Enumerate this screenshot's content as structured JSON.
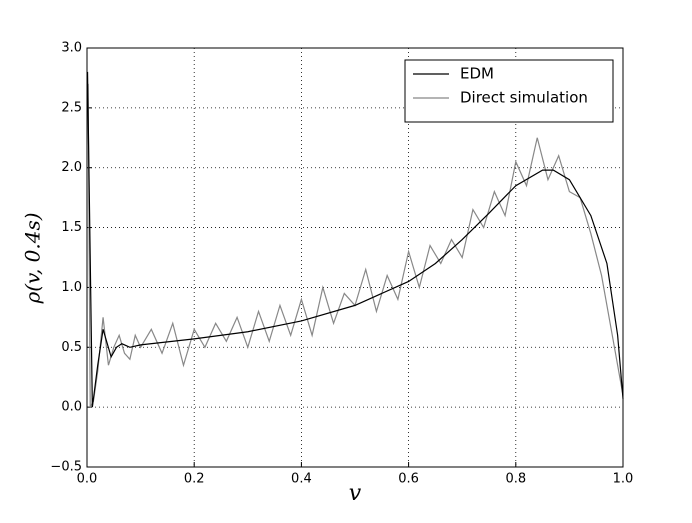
{
  "chart_data": {
    "type": "line",
    "xlabel": "v",
    "ylabel": "ρ(v, 0.4s)",
    "xlim": [
      0,
      1
    ],
    "ylim": [
      -0.5,
      3
    ],
    "xticks": [
      {
        "value": 0,
        "label": "0.0"
      },
      {
        "value": 0.2,
        "label": "0.2"
      },
      {
        "value": 0.4,
        "label": "0.4"
      },
      {
        "value": 0.6,
        "label": "0.6"
      },
      {
        "value": 0.8,
        "label": "0.8"
      },
      {
        "value": 1,
        "label": "1.0"
      }
    ],
    "yticks": [
      {
        "value": -0.5,
        "label": "−0.5"
      },
      {
        "value": 0,
        "label": "0.0"
      },
      {
        "value": 0.5,
        "label": "0.5"
      },
      {
        "value": 1,
        "label": "1.0"
      },
      {
        "value": 1.5,
        "label": "1.5"
      },
      {
        "value": 2,
        "label": "2.0"
      },
      {
        "value": 2.5,
        "label": "2.5"
      },
      {
        "value": 3,
        "label": "3.0"
      }
    ],
    "grid": true,
    "legend": "upper right",
    "series": [
      {
        "name": "EDM",
        "color": "#000000",
        "x": [
          0.001,
          0.01,
          0.02,
          0.03,
          0.045,
          0.055,
          0.065,
          0.08,
          0.1,
          0.2,
          0.3,
          0.4,
          0.5,
          0.6,
          0.65,
          0.7,
          0.75,
          0.8,
          0.85,
          0.87,
          0.9,
          0.94,
          0.97,
          0.99,
          1.0
        ],
        "values": [
          2.8,
          0.0,
          0.35,
          0.65,
          0.42,
          0.5,
          0.53,
          0.5,
          0.52,
          0.57,
          0.63,
          0.72,
          0.85,
          1.05,
          1.2,
          1.4,
          1.62,
          1.85,
          1.98,
          1.98,
          1.9,
          1.6,
          1.2,
          0.6,
          0.07
        ]
      },
      {
        "name": "Direct simulation",
        "color": "#888888",
        "x": [
          0.002,
          0.006,
          0.012,
          0.02,
          0.03,
          0.04,
          0.05,
          0.06,
          0.07,
          0.08,
          0.09,
          0.1,
          0.12,
          0.14,
          0.16,
          0.18,
          0.2,
          0.22,
          0.24,
          0.26,
          0.28,
          0.3,
          0.32,
          0.34,
          0.36,
          0.38,
          0.4,
          0.42,
          0.44,
          0.46,
          0.48,
          0.5,
          0.52,
          0.54,
          0.56,
          0.58,
          0.6,
          0.62,
          0.64,
          0.66,
          0.68,
          0.7,
          0.72,
          0.74,
          0.76,
          0.78,
          0.8,
          0.82,
          0.84,
          0.86,
          0.88,
          0.9,
          0.92,
          0.94,
          0.96,
          0.98,
          1.0
        ],
        "values": [
          2.7,
          0.0,
          0.05,
          0.3,
          0.75,
          0.35,
          0.5,
          0.6,
          0.45,
          0.4,
          0.6,
          0.5,
          0.65,
          0.45,
          0.7,
          0.35,
          0.65,
          0.5,
          0.7,
          0.55,
          0.75,
          0.5,
          0.8,
          0.55,
          0.85,
          0.6,
          0.9,
          0.6,
          1.0,
          0.7,
          0.95,
          0.85,
          1.15,
          0.8,
          1.1,
          0.9,
          1.3,
          1.0,
          1.35,
          1.2,
          1.4,
          1.25,
          1.65,
          1.5,
          1.8,
          1.6,
          2.05,
          1.85,
          2.25,
          1.9,
          2.1,
          1.8,
          1.75,
          1.45,
          1.1,
          0.6,
          0.1
        ]
      }
    ]
  }
}
